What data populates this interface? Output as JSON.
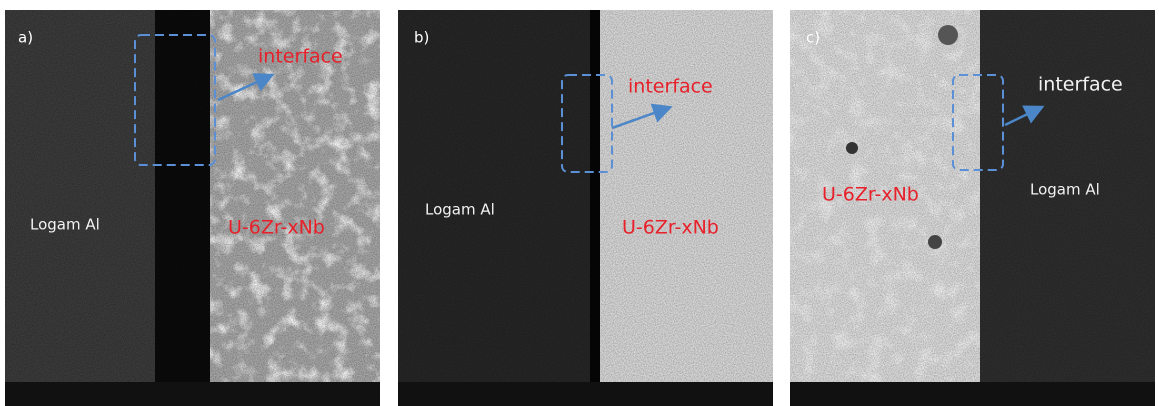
{
  "panels": [
    {
      "label": "a)",
      "interface": "interface",
      "left_region": "Logam Al",
      "right_region": "U-6Zr-xNb"
    },
    {
      "label": "b)",
      "interface": "interface",
      "left_region": "Logam Al",
      "right_region": "U-6Zr-xNb"
    },
    {
      "label": "c)",
      "interface": "interface",
      "left_region": "U-6Zr-xNb",
      "right_region": "Logam Al"
    }
  ]
}
